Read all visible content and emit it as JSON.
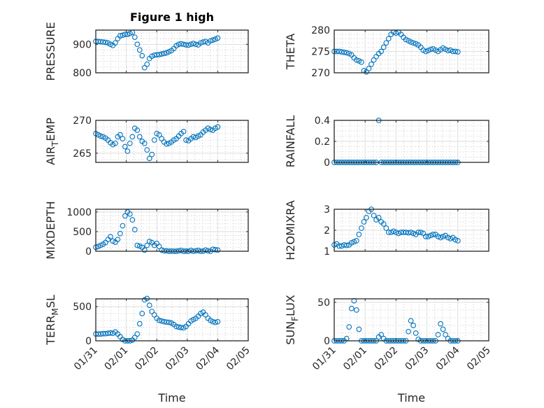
{
  "figure": {
    "title": "Figure 1 high",
    "xlabel": "Time",
    "x_tick_labels": [
      "01/31",
      "02/01",
      "02/02",
      "02/03",
      "02/04",
      "02/05"
    ],
    "marker_color": "#0072BD"
  },
  "chart_data": [
    {
      "type": "scatter",
      "ylabel": "PRESSURE",
      "ylim": [
        800,
        950
      ],
      "yticks": [
        800,
        900
      ],
      "yminor": 20,
      "xlim": [
        0,
        5
      ],
      "x_start": 0,
      "x_step": 0.08,
      "x_unit": "days since 01/31",
      "grid": true,
      "values": [
        910,
        910,
        909,
        908,
        907,
        905,
        900,
        896,
        905,
        920,
        930,
        932,
        935,
        935,
        938,
        942,
        925,
        900,
        880,
        860,
        818,
        830,
        850,
        858,
        862,
        863,
        864,
        866,
        868,
        870,
        874,
        878,
        885,
        895,
        900,
        902,
        900,
        898,
        897,
        900,
        903,
        900,
        898,
        905,
        908,
        910,
        905,
        912,
        915,
        918,
        922
      ]
    },
    {
      "type": "scatter",
      "ylabel": "THETA",
      "ylim": [
        270,
        280
      ],
      "yticks": [
        270,
        275,
        280
      ],
      "yminor": 1,
      "xlim": [
        0,
        5
      ],
      "x_start": 0,
      "x_step": 0.08,
      "x_unit": "days since 01/31",
      "grid": true,
      "values": [
        275,
        275,
        275,
        274.9,
        274.8,
        274.7,
        274.5,
        274.2,
        273.5,
        273,
        272.8,
        272.5,
        270.5,
        270.2,
        271,
        272,
        273,
        273.8,
        274.5,
        275,
        276,
        277,
        278,
        279,
        279.5,
        279.3,
        279.5,
        279,
        278.3,
        277.8,
        277.5,
        277.2,
        277,
        276.8,
        276.5,
        276,
        275.3,
        275,
        275.2,
        275.5,
        275.6,
        275.3,
        275,
        275.4,
        275.8,
        275.5,
        275.2,
        275.3,
        275,
        275,
        274.9
      ]
    },
    {
      "type": "scatter",
      "ylabel": "AIR_TEMP",
      "ylim": [
        263.6,
        270
      ],
      "yticks": [
        265,
        270
      ],
      "yminor": 1,
      "xlim": [
        0,
        5
      ],
      "x_start": 0,
      "x_step": 0.08,
      "x_unit": "days since 01/31",
      "grid": true,
      "values": [
        268,
        267.8,
        267.6,
        267.5,
        267.3,
        267,
        266.6,
        266.3,
        266.5,
        267.5,
        267.8,
        267.2,
        266,
        265.3,
        266.5,
        267.5,
        268.8,
        268.5,
        267.5,
        266.8,
        266.5,
        265.5,
        264.2,
        264.8,
        267,
        268,
        267.8,
        267.2,
        266.7,
        266.4,
        266.5,
        266.7,
        267,
        267.2,
        267.6,
        268,
        268.3,
        267,
        266.9,
        267.2,
        267.5,
        267.4,
        267.6,
        267.8,
        268.2,
        268.5,
        268.8,
        268.6,
        268.5,
        268.8,
        269
      ]
    },
    {
      "type": "scatter",
      "ylabel": "RAINFALL",
      "ylim": [
        0,
        0.4
      ],
      "yticks": [
        0,
        0.2,
        0.4
      ],
      "yminor": 0.05,
      "xlim": [
        0,
        5
      ],
      "x_start": 0,
      "x_step": 0.08,
      "x_unit": "days since 01/31",
      "grid": true,
      "values": [
        0,
        0,
        0,
        0,
        0,
        0,
        0,
        0,
        0,
        0,
        0,
        0,
        0,
        0,
        0,
        0,
        0,
        0,
        0.4,
        0,
        0,
        0,
        0,
        0,
        0,
        0,
        0,
        0,
        0,
        0,
        0,
        0,
        0,
        0,
        0,
        0,
        0,
        0,
        0,
        0,
        0,
        0,
        0,
        0,
        0,
        0,
        0,
        0,
        0,
        0,
        0
      ]
    },
    {
      "type": "scatter",
      "ylabel": "MIXDEPTH",
      "ylim": [
        0,
        1070
      ],
      "yticks": [
        0,
        500,
        1000
      ],
      "yminor": 100,
      "xlim": [
        0,
        5
      ],
      "x_start": 0,
      "x_step": 0.08,
      "x_unit": "days since 01/31",
      "grid": true,
      "values": [
        100,
        120,
        150,
        180,
        220,
        300,
        370,
        260,
        230,
        300,
        450,
        650,
        900,
        1000,
        950,
        800,
        550,
        150,
        130,
        100,
        30,
        150,
        250,
        220,
        150,
        200,
        120,
        30,
        10,
        10,
        0,
        5,
        0,
        0,
        10,
        20,
        0,
        5,
        0,
        20,
        0,
        10,
        20,
        0,
        5,
        30,
        10,
        0,
        50,
        40,
        30
      ]
    },
    {
      "type": "scatter",
      "ylabel": "H2OMIXRA",
      "ylim": [
        1,
        3
      ],
      "yticks": [
        1,
        2,
        3
      ],
      "yminor": 0.2,
      "xlim": [
        0,
        5
      ],
      "x_start": 0,
      "x_step": 0.08,
      "x_unit": "days since 01/31",
      "grid": true,
      "values": [
        1.3,
        1.35,
        1.25,
        1.25,
        1.3,
        1.28,
        1.3,
        1.4,
        1.45,
        1.5,
        1.8,
        2.1,
        2.4,
        2.6,
        2.9,
        3,
        2.7,
        2.5,
        2.6,
        2.4,
        2.3,
        2.1,
        1.9,
        1.9,
        1.95,
        1.9,
        1.85,
        1.9,
        1.9,
        1.9,
        1.88,
        1.9,
        1.85,
        1.8,
        1.9,
        1.9,
        1.85,
        1.7,
        1.7,
        1.75,
        1.8,
        1.8,
        1.7,
        1.65,
        1.7,
        1.75,
        1.65,
        1.6,
        1.65,
        1.55,
        1.5
      ]
    },
    {
      "type": "scatter",
      "ylabel": "TERR_MSL",
      "ylim": [
        0,
        615
      ],
      "yticks": [
        0,
        500
      ],
      "yminor": 100,
      "xlim": [
        0,
        5
      ],
      "x_start": 0,
      "x_step": 0.08,
      "x_unit": "days since 01/31",
      "grid": true,
      "values": [
        100,
        100,
        100,
        105,
        105,
        110,
        115,
        110,
        130,
        100,
        60,
        20,
        0,
        0,
        0,
        10,
        50,
        100,
        250,
        400,
        600,
        620,
        520,
        430,
        380,
        330,
        300,
        290,
        280,
        275,
        270,
        260,
        240,
        210,
        200,
        195,
        190,
        210,
        250,
        290,
        310,
        330,
        360,
        400,
        420,
        380,
        330,
        300,
        280,
        270,
        280
      ]
    },
    {
      "type": "scatter",
      "ylabel": "SUN_FLUX",
      "ylim": [
        0,
        54.5
      ],
      "yticks": [
        0,
        50
      ],
      "yminor": 10,
      "xlim": [
        0,
        5
      ],
      "x_start": 0,
      "x_step": 0.08,
      "x_unit": "days since 01/31",
      "grid": true,
      "values": [
        0,
        0,
        0,
        0,
        0,
        3,
        18,
        42,
        52,
        40,
        15,
        0,
        0,
        0,
        0,
        0,
        0,
        0,
        5,
        8,
        3,
        0,
        0,
        0,
        0,
        0,
        0,
        0,
        0,
        0,
        12,
        26,
        20,
        10,
        2,
        0,
        0,
        0,
        0,
        0,
        0,
        0,
        8,
        22,
        15,
        8,
        3,
        0,
        0,
        0,
        0
      ]
    }
  ]
}
